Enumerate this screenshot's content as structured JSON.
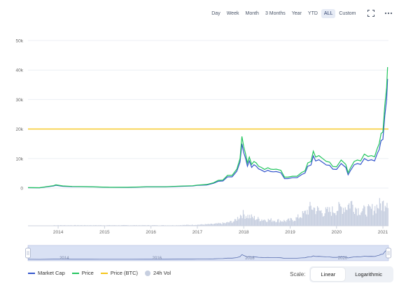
{
  "toolbar": {
    "ranges": [
      "Day",
      "Week",
      "Month",
      "3 Months",
      "Year",
      "YTD",
      "ALL",
      "Custom"
    ],
    "active_range": "ALL",
    "fullscreen_icon": "fullscreen-icon",
    "more_icon": "more-icon"
  },
  "legend": {
    "market_cap": "Market Cap",
    "price": "Price",
    "price_btc": "Price (BTC)",
    "vol": "24h Vol"
  },
  "scale": {
    "label": "Scale:",
    "linear": "Linear",
    "log": "Logarithmic",
    "active": "Linear"
  },
  "colors": {
    "market_cap": "#3355cc",
    "price": "#22c55e",
    "price_btc": "#f5c518",
    "vol": "#c7cfe0",
    "navigator_fill": "#d6def5"
  },
  "chart_data": {
    "type": "line",
    "ylim": [
      0,
      50000
    ],
    "ytick_labels": [
      "0",
      "10k",
      "20k",
      "30k",
      "40k",
      "50k"
    ],
    "yticks": [
      0,
      10000,
      20000,
      30000,
      40000,
      50000
    ],
    "xlim": [
      2013.35,
      2021.12
    ],
    "x_ticks": [
      2014,
      2015,
      2016,
      2017,
      2018,
      2019,
      2020,
      2021
    ],
    "x_tick_labels": [
      "2014",
      "2015",
      "2016",
      "2017",
      "2018",
      "2019",
      "2020",
      "2021"
    ],
    "navigator_ticks": [
      2014,
      2016,
      2018,
      2020
    ],
    "navigator_labels": [
      "2014",
      "2016",
      "2018",
      "2020"
    ],
    "price_btc_constant": 20000,
    "series": [
      {
        "name": "Price",
        "x": [
          2013.35,
          2013.6,
          2013.9,
          2013.95,
          2014.1,
          2014.3,
          2014.6,
          2014.9,
          2015.1,
          2015.5,
          2015.9,
          2016.3,
          2016.6,
          2016.9,
          2017.0,
          2017.2,
          2017.35,
          2017.45,
          2017.55,
          2017.65,
          2017.75,
          2017.85,
          2017.92,
          2017.96,
          2018.0,
          2018.04,
          2018.08,
          2018.12,
          2018.17,
          2018.22,
          2018.27,
          2018.32,
          2018.38,
          2018.45,
          2018.52,
          2018.58,
          2018.64,
          2018.7,
          2018.8,
          2018.88,
          2018.95,
          2019.05,
          2019.15,
          2019.25,
          2019.32,
          2019.38,
          2019.45,
          2019.5,
          2019.55,
          2019.62,
          2019.7,
          2019.78,
          2019.85,
          2019.92,
          2020.0,
          2020.1,
          2020.2,
          2020.25,
          2020.3,
          2020.38,
          2020.45,
          2020.52,
          2020.6,
          2020.68,
          2020.75,
          2020.82,
          2020.88,
          2020.92,
          2020.96,
          2021.0,
          2021.04,
          2021.08,
          2021.1
        ],
        "values": [
          150,
          120,
          800,
          1100,
          700,
          550,
          480,
          360,
          260,
          250,
          420,
          420,
          650,
          780,
          1000,
          1200,
          1800,
          2600,
          2700,
          4300,
          4300,
          6400,
          10000,
          17500,
          14000,
          11500,
          8500,
          10500,
          8000,
          9000,
          8500,
          7400,
          7000,
          6300,
          6900,
          6400,
          6300,
          6400,
          6000,
          3700,
          3700,
          4000,
          4000,
          5300,
          5800,
          8500,
          9000,
          12500,
          10500,
          11000,
          10000,
          9000,
          8800,
          7300,
          7200,
          9500,
          8000,
          5200,
          6800,
          9000,
          9500,
          9200,
          11500,
          10700,
          11000,
          10600,
          13500,
          15000,
          18500,
          19000,
          28000,
          34000,
          41000
        ]
      },
      {
        "name": "Market Cap",
        "x": [
          2013.35,
          2013.6,
          2013.9,
          2013.95,
          2014.1,
          2014.3,
          2014.6,
          2014.9,
          2015.1,
          2015.5,
          2015.9,
          2016.3,
          2016.6,
          2016.9,
          2017.0,
          2017.2,
          2017.35,
          2017.45,
          2017.55,
          2017.65,
          2017.75,
          2017.85,
          2017.92,
          2017.96,
          2018.0,
          2018.04,
          2018.08,
          2018.12,
          2018.17,
          2018.22,
          2018.27,
          2018.32,
          2018.38,
          2018.45,
          2018.52,
          2018.58,
          2018.64,
          2018.7,
          2018.8,
          2018.88,
          2018.95,
          2019.05,
          2019.15,
          2019.25,
          2019.32,
          2019.38,
          2019.45,
          2019.5,
          2019.55,
          2019.62,
          2019.7,
          2019.78,
          2019.85,
          2019.92,
          2020.0,
          2020.1,
          2020.2,
          2020.25,
          2020.3,
          2020.38,
          2020.45,
          2020.52,
          2020.6,
          2020.68,
          2020.75,
          2020.82,
          2020.88,
          2020.92,
          2020.96,
          2021.0,
          2021.04,
          2021.08,
          2021.1
        ],
        "values": [
          120,
          100,
          700,
          950,
          600,
          480,
          420,
          320,
          230,
          220,
          370,
          380,
          580,
          700,
          900,
          1050,
          1600,
          2300,
          2400,
          3800,
          3800,
          5700,
          8800,
          15000,
          12000,
          10000,
          7400,
          9200,
          7000,
          7900,
          7400,
          6500,
          6100,
          5500,
          6000,
          5600,
          5500,
          5600,
          5200,
          3200,
          3200,
          3500,
          3500,
          4600,
          5100,
          7400,
          7800,
          10900,
          9200,
          9600,
          8700,
          7800,
          7700,
          6400,
          6300,
          8300,
          7000,
          4500,
          5900,
          7900,
          8300,
          8000,
          10000,
          9300,
          9600,
          9200,
          11800,
          13000,
          16100,
          16500,
          24500,
          30000,
          37000
        ]
      },
      {
        "name": "24h Vol",
        "x": [
          2014,
          2014.5,
          2015,
          2015.5,
          2016,
          2016.5,
          2017,
          2017.3,
          2017.6,
          2017.8,
          2017.95,
          2018.1,
          2018.3,
          2018.5,
          2018.7,
          2018.9,
          2019.1,
          2019.3,
          2019.45,
          2019.55,
          2019.7,
          2019.9,
          2020.05,
          2020.2,
          2020.3,
          2020.45,
          2020.6,
          2020.75,
          2020.9,
          2021.0,
          2021.05,
          2021.1
        ],
        "values": [
          0.02,
          0.02,
          0.02,
          0.02,
          0.02,
          0.02,
          0.04,
          0.06,
          0.1,
          0.18,
          0.45,
          0.35,
          0.25,
          0.22,
          0.2,
          0.18,
          0.25,
          0.45,
          0.7,
          0.6,
          0.5,
          0.55,
          0.65,
          0.7,
          0.85,
          0.6,
          0.55,
          0.6,
          0.75,
          0.8,
          0.95,
          1.0
        ]
      }
    ]
  }
}
